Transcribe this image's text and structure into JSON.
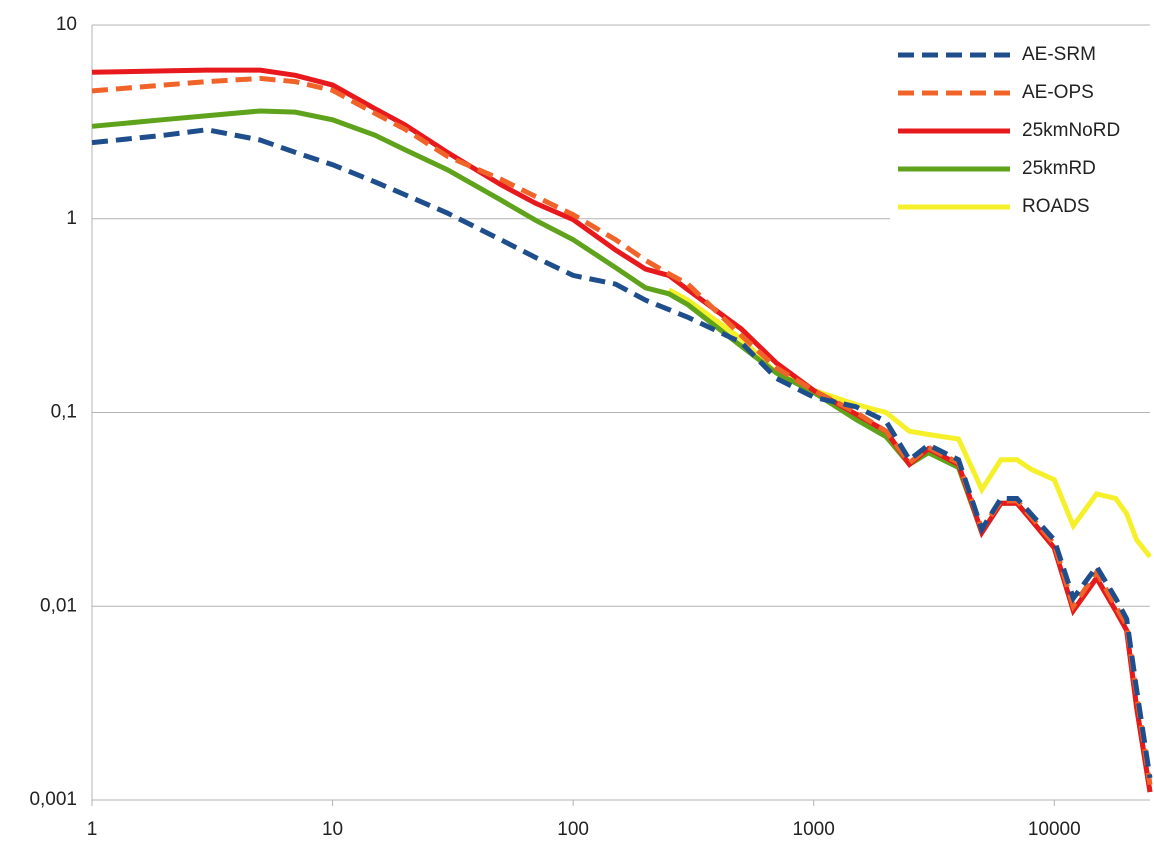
{
  "chart_data": {
    "type": "line",
    "xlog": true,
    "ylog": true,
    "grid": true,
    "legend": "top-right",
    "x": [
      1,
      2,
      3,
      5,
      7,
      10,
      15,
      20,
      30,
      50,
      70,
      100,
      150,
      200,
      250,
      300,
      500,
      700,
      1000,
      1500,
      2000,
      2500,
      3000,
      4000,
      5000,
      6000,
      7000,
      8000,
      10000,
      12000,
      15000,
      18000,
      20000,
      22000,
      25000
    ],
    "xlim": [
      1,
      25000
    ],
    "xticks": [
      1,
      10,
      100,
      1000,
      10000
    ],
    "ylim": [
      0.001,
      10
    ],
    "yticks": [
      {
        "value": 0.001,
        "label": "0,001"
      },
      {
        "value": 0.01,
        "label": "0,01"
      },
      {
        "value": 0.1,
        "label": "0,1"
      },
      1,
      10
    ],
    "series": [
      {
        "name": "AE-SRM",
        "color": "#1f4e8c",
        "dash": true,
        "values": [
          2.47,
          2.7,
          2.88,
          2.55,
          2.2,
          1.9,
          1.55,
          1.33,
          1.07,
          0.78,
          0.63,
          0.51,
          0.46,
          0.38,
          0.34,
          0.31,
          0.23,
          0.15,
          0.12,
          0.107,
          0.09,
          0.057,
          0.068,
          0.057,
          0.025,
          0.036,
          0.036,
          0.03,
          0.022,
          0.011,
          0.016,
          0.011,
          0.0086,
          0.0037,
          0.0013
        ]
      },
      {
        "name": "AE-OPS",
        "color": "#f0642a",
        "dash": true,
        "values": [
          4.57,
          4.9,
          5.1,
          5.3,
          5.1,
          4.6,
          3.5,
          2.9,
          2.1,
          1.6,
          1.3,
          1.05,
          0.78,
          0.61,
          0.52,
          0.46,
          0.25,
          0.17,
          0.13,
          0.1,
          0.08,
          0.055,
          0.066,
          0.055,
          0.025,
          0.035,
          0.035,
          0.029,
          0.021,
          0.01,
          0.015,
          0.01,
          0.008,
          0.0035,
          0.0012
        ]
      },
      {
        "name": "25kmNoRD",
        "color": "#e8191c",
        "dash": false,
        "values": [
          5.7,
          5.8,
          5.85,
          5.85,
          5.5,
          4.9,
          3.7,
          3.05,
          2.2,
          1.5,
          1.2,
          0.99,
          0.69,
          0.55,
          0.51,
          0.43,
          0.27,
          0.18,
          0.13,
          0.098,
          0.08,
          0.054,
          0.065,
          0.054,
          0.024,
          0.034,
          0.034,
          0.028,
          0.02,
          0.0095,
          0.014,
          0.0095,
          0.0075,
          0.003,
          0.0011
        ]
      },
      {
        "name": "25kmRD",
        "color": "#5fa31c",
        "dash": false,
        "values": [
          3.0,
          3.25,
          3.4,
          3.6,
          3.55,
          3.24,
          2.7,
          2.27,
          1.79,
          1.25,
          0.98,
          0.78,
          0.56,
          0.44,
          0.41,
          0.36,
          0.22,
          0.16,
          0.127,
          0.092,
          0.075,
          0.054,
          0.062,
          0.052,
          0.024,
          0.034,
          0.034,
          0.028,
          0.02,
          0.0095,
          0.014,
          0.0095,
          0.0075,
          0.003,
          0.0011
        ]
      },
      {
        "name": "ROADS",
        "color": "#f5f02a",
        "dash": false,
        "values": [
          null,
          null,
          null,
          null,
          null,
          null,
          null,
          null,
          null,
          null,
          null,
          null,
          null,
          null,
          0.43,
          0.38,
          0.24,
          0.16,
          0.13,
          0.11,
          0.1,
          0.08,
          0.077,
          0.073,
          0.04,
          0.057,
          0.057,
          0.051,
          0.045,
          0.026,
          0.038,
          0.036,
          0.03,
          0.022,
          0.018
        ]
      }
    ]
  }
}
